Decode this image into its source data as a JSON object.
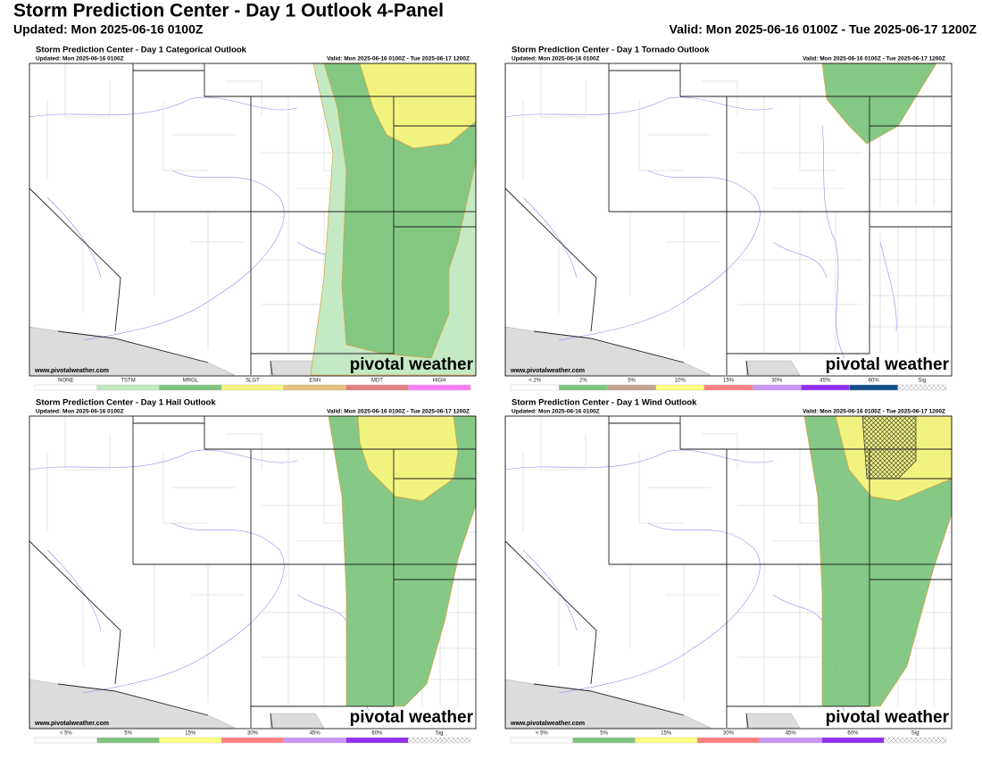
{
  "header": {
    "title": "Storm Prediction Center - Day 1 Outlook 4-Panel",
    "updated": "Updated: Mon 2025-06-16 0100Z",
    "valid": "Valid: Mon 2025-06-16 0100Z - Tue 2025-06-17 1200Z"
  },
  "panels": [
    {
      "title": "Storm Prediction Center - Day 1 Categorical Outlook",
      "updated": "Updated: Mon 2025-06-16 0100Z",
      "valid": "Valid: Mon 2025-06-16 0100Z - Tue 2025-06-17 1200Z",
      "site": "www.pivotalweather.com",
      "logo": "pivotal weather",
      "legend": [
        {
          "label": "NONE",
          "color": "#ffffff"
        },
        {
          "label": "TSTM",
          "color": "#c1e9c1"
        },
        {
          "label": "MRGL",
          "color": "#7fc57f"
        },
        {
          "label": "SLGT",
          "color": "#f6f67f"
        },
        {
          "label": "ENH",
          "color": "#e6c27f"
        },
        {
          "label": "MDT",
          "color": "#e67f7f"
        },
        {
          "label": "HIGH",
          "color": "#ff7fff"
        }
      ]
    },
    {
      "title": "Storm Prediction Center - Day 1 Tornado Outlook",
      "updated": "Updated: Mon 2025-06-16 0100Z",
      "valid": "Valid: Mon 2025-06-16 0100Z - Tue 2025-06-17 1200Z",
      "site": "www.pivotalweather.com",
      "logo": "pivotal weather",
      "legend": [
        {
          "label": "< 2%",
          "color": "#ffffff"
        },
        {
          "label": "2%",
          "color": "#80c580"
        },
        {
          "label": "5%",
          "color": "#c5a393"
        },
        {
          "label": "10%",
          "color": "#ffff80"
        },
        {
          "label": "15%",
          "color": "#ff8080"
        },
        {
          "label": "30%",
          "color": "#c896f7"
        },
        {
          "label": "45%",
          "color": "#912cee"
        },
        {
          "label": "60%",
          "color": "#104e8b"
        },
        {
          "label": "Sig",
          "color": "hatch"
        }
      ]
    },
    {
      "title": "Storm Prediction Center - Day 1 Hail Outlook",
      "updated": "Updated: Mon 2025-06-16 0100Z",
      "valid": "Valid: Mon 2025-06-16 0100Z - Tue 2025-06-17 1200Z",
      "site": "www.pivotalweather.com",
      "logo": "pivotal weather",
      "legend": [
        {
          "label": "< 5%",
          "color": "#ffffff"
        },
        {
          "label": "5%",
          "color": "#80c580"
        },
        {
          "label": "15%",
          "color": "#ffff80"
        },
        {
          "label": "30%",
          "color": "#ff8080"
        },
        {
          "label": "45%",
          "color": "#c896f7"
        },
        {
          "label": "60%",
          "color": "#912cee"
        },
        {
          "label": "Sig",
          "color": "hatch"
        }
      ]
    },
    {
      "title": "Storm Prediction Center - Day 1 Wind Outlook",
      "updated": "Updated: Mon 2025-06-16 0100Z",
      "valid": "Valid: Mon 2025-06-16 0100Z - Tue 2025-06-17 1200Z",
      "site": "www.pivotalweather.com",
      "logo": "pivotal weather",
      "legend": [
        {
          "label": "< 5%",
          "color": "#ffffff"
        },
        {
          "label": "5%",
          "color": "#80c580"
        },
        {
          "label": "15%",
          "color": "#ffff80"
        },
        {
          "label": "30%",
          "color": "#ff8080"
        },
        {
          "label": "45%",
          "color": "#c896f7"
        },
        {
          "label": "60%",
          "color": "#912cee"
        },
        {
          "label": "Sig",
          "color": "hatch"
        }
      ]
    }
  ]
}
